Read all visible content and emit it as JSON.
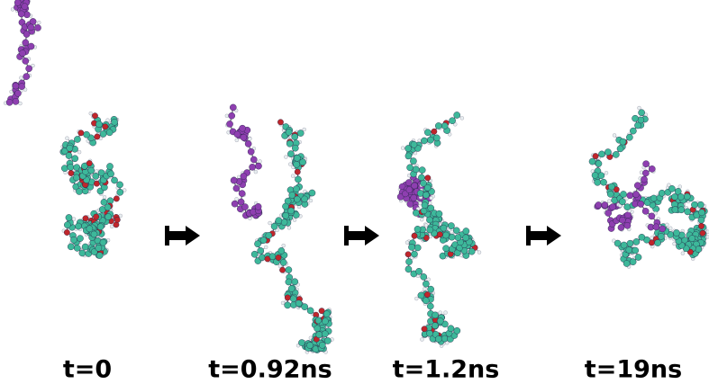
{
  "panels": [
    {
      "label": "t=0"
    },
    {
      "label": "t=0.92ns"
    },
    {
      "label": "t=1.2ns"
    },
    {
      "label": "t=19ns"
    }
  ]
}
